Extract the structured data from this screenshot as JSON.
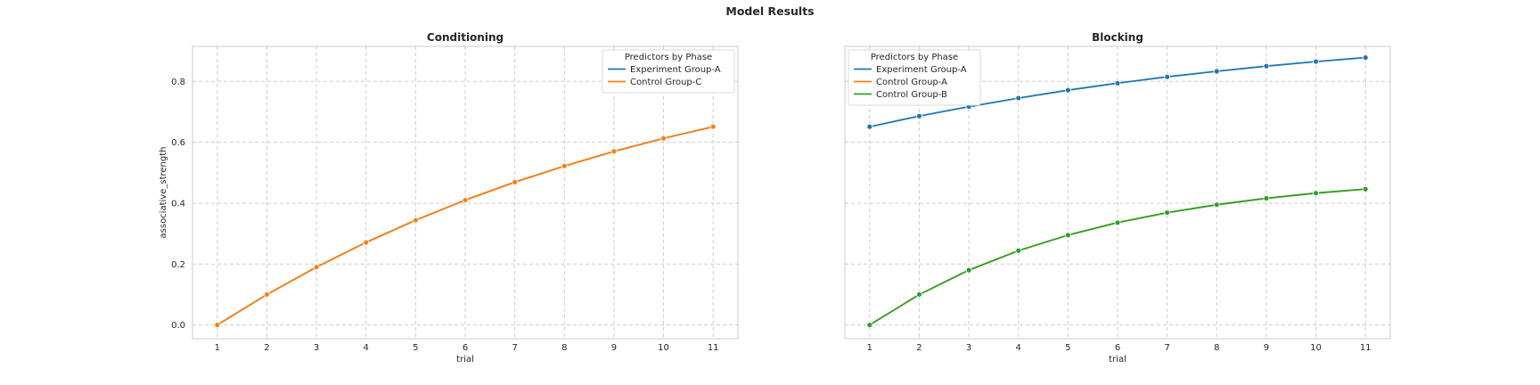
{
  "suptitle": "Model Results",
  "chart_data": [
    {
      "type": "line",
      "title": "Conditioning",
      "xlabel": "trial",
      "ylabel": "associative_strength",
      "xlim": [
        0.5,
        11.5
      ],
      "ylim": [
        -0.045,
        0.915
      ],
      "xticks": [
        1,
        2,
        3,
        4,
        5,
        6,
        7,
        8,
        9,
        10,
        11
      ],
      "yticks": [
        0.0,
        0.2,
        0.4,
        0.6,
        0.8
      ],
      "ytick_labels": [
        "0.0",
        "0.2",
        "0.4",
        "0.6",
        "0.8"
      ],
      "show_yticklabels": true,
      "grid": true,
      "legend": {
        "title": "Predictors by Phase",
        "placement": "top-right",
        "entries": [
          {
            "name": "Experiment Group-A",
            "color": "#1f77b4"
          },
          {
            "name": "Control Group-C",
            "color": "#ff7f0e"
          }
        ]
      },
      "series": [
        {
          "name": "Experiment Group-A",
          "color": "#1f77b4",
          "x": [
            1,
            2,
            3,
            4,
            5,
            6,
            7,
            8,
            9,
            10,
            11
          ],
          "y": [
            0.0,
            0.1,
            0.19,
            0.271,
            0.344,
            0.41,
            0.469,
            0.522,
            0.57,
            0.613,
            0.651
          ]
        },
        {
          "name": "Control Group-C",
          "color": "#ff7f0e",
          "x": [
            1,
            2,
            3,
            4,
            5,
            6,
            7,
            8,
            9,
            10,
            11
          ],
          "y": [
            0.0,
            0.1,
            0.19,
            0.271,
            0.344,
            0.41,
            0.469,
            0.522,
            0.57,
            0.613,
            0.651
          ]
        }
      ]
    },
    {
      "type": "line",
      "title": "Blocking",
      "xlabel": "trial",
      "ylabel": "",
      "xlim": [
        0.5,
        11.5
      ],
      "ylim": [
        -0.045,
        0.915
      ],
      "xticks": [
        1,
        2,
        3,
        4,
        5,
        6,
        7,
        8,
        9,
        10,
        11
      ],
      "yticks": [
        0.0,
        0.2,
        0.4,
        0.6,
        0.8
      ],
      "ytick_labels": [
        "0.0",
        "0.2",
        "0.4",
        "0.6",
        "0.8"
      ],
      "show_yticklabels": false,
      "grid": true,
      "legend": {
        "title": "Predictors by Phase",
        "placement": "top-left",
        "entries": [
          {
            "name": "Experiment Group-A",
            "color": "#1f77b4"
          },
          {
            "name": "Control Group-A",
            "color": "#ff7f0e"
          },
          {
            "name": "Control Group-B",
            "color": "#2ca02c"
          }
        ]
      },
      "series": [
        {
          "name": "Experiment Group-A",
          "color": "#1f77b4",
          "x": [
            1,
            2,
            3,
            4,
            5,
            6,
            7,
            8,
            9,
            10,
            11
          ],
          "y": [
            0.651,
            0.686,
            0.717,
            0.745,
            0.771,
            0.794,
            0.815,
            0.833,
            0.85,
            0.865,
            0.878
          ]
        },
        {
          "name": "Control Group-A",
          "color": "#ff7f0e",
          "x": [
            1,
            2,
            3,
            4,
            5,
            6,
            7,
            8,
            9,
            10,
            11
          ],
          "y": [
            0.0,
            0.1,
            0.18,
            0.244,
            0.295,
            0.336,
            0.369,
            0.395,
            0.416,
            0.433,
            0.446
          ]
        },
        {
          "name": "Control Group-B",
          "color": "#2ca02c",
          "x": [
            1,
            2,
            3,
            4,
            5,
            6,
            7,
            8,
            9,
            10,
            11
          ],
          "y": [
            0.0,
            0.1,
            0.18,
            0.244,
            0.295,
            0.336,
            0.369,
            0.395,
            0.416,
            0.433,
            0.446
          ]
        }
      ]
    }
  ]
}
